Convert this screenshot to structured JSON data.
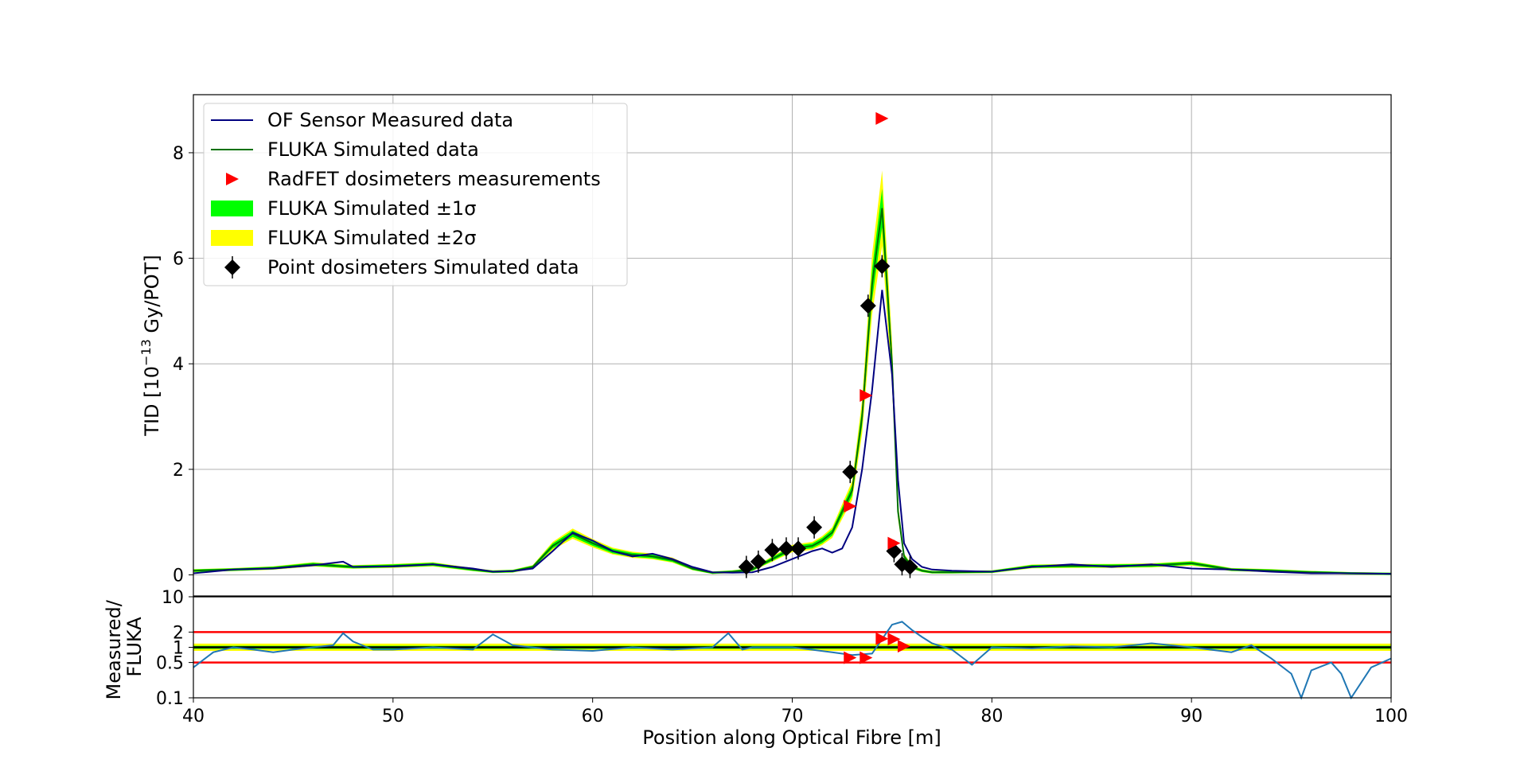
{
  "chart_data": [
    {
      "type": "line",
      "panel": "main",
      "ylabel_main": "TID [10",
      "ylabel_exp": "−13",
      "ylabel_tail": " Gy/POT]",
      "xlim": [
        40,
        100
      ],
      "ylim": [
        -0.4,
        9.1
      ],
      "xticks": [
        40,
        50,
        60,
        70,
        80,
        90,
        100
      ],
      "yticks": [
        0,
        2,
        4,
        6,
        8
      ],
      "grid": true,
      "legend_position": "top-left",
      "legend": [
        {
          "label": "OF Sensor Measured data",
          "color": "#000080",
          "kind": "line"
        },
        {
          "label": "FLUKA Simulated data",
          "color": "#007000",
          "kind": "line"
        },
        {
          "label": "RadFET dosimeters measurements",
          "color": "#ff0000",
          "kind": "triangle"
        },
        {
          "label": "FLUKA Simulated ±1σ",
          "color": "#00ff00",
          "kind": "patch"
        },
        {
          "label": "FLUKA Simulated ±2σ",
          "color": "#ffff00",
          "kind": "patch"
        },
        {
          "label": "Point dosimeters Simulated data",
          "color": "#000000",
          "kind": "diamond"
        }
      ],
      "series": [
        {
          "name": "OF Sensor Measured data",
          "x": [
            40,
            42,
            44,
            46,
            47.5,
            48,
            50,
            52,
            54,
            55,
            56,
            57,
            58,
            59,
            60,
            61,
            62,
            63,
            64,
            65,
            66,
            67,
            68,
            69,
            70,
            71,
            71.5,
            72,
            72.5,
            73,
            73.5,
            74,
            74.5,
            75,
            75.3,
            75.6,
            76,
            76.5,
            77,
            78,
            80,
            82,
            84,
            86,
            88,
            90,
            92,
            94,
            96,
            98,
            100
          ],
          "y": [
            0.03,
            0.1,
            0.12,
            0.18,
            0.25,
            0.15,
            0.16,
            0.2,
            0.12,
            0.06,
            0.07,
            0.12,
            0.45,
            0.8,
            0.65,
            0.45,
            0.35,
            0.4,
            0.3,
            0.15,
            0.05,
            0.04,
            0.05,
            0.15,
            0.3,
            0.45,
            0.5,
            0.42,
            0.5,
            0.9,
            2.0,
            3.5,
            5.4,
            3.8,
            1.8,
            0.6,
            0.3,
            0.15,
            0.1,
            0.08,
            0.06,
            0.15,
            0.2,
            0.15,
            0.2,
            0.12,
            0.1,
            0.06,
            0.03,
            0.03,
            0.02
          ]
        },
        {
          "name": "FLUKA Simulated data",
          "x": [
            40,
            42,
            44,
            46,
            48,
            50,
            52,
            54,
            55,
            56,
            57,
            58,
            59,
            60,
            61,
            62,
            63,
            64,
            65,
            66,
            67,
            68,
            69,
            70,
            71,
            71.5,
            72,
            72.5,
            73,
            73.5,
            74,
            74.5,
            75,
            75.3,
            75.6,
            76,
            76.5,
            77,
            78,
            80,
            82,
            84,
            86,
            88,
            90,
            92,
            94,
            96,
            98,
            100
          ],
          "y": [
            0.08,
            0.1,
            0.13,
            0.2,
            0.15,
            0.17,
            0.2,
            0.1,
            0.06,
            0.07,
            0.15,
            0.55,
            0.78,
            0.6,
            0.45,
            0.38,
            0.35,
            0.28,
            0.12,
            0.04,
            0.06,
            0.1,
            0.3,
            0.5,
            0.55,
            0.65,
            0.8,
            1.2,
            1.6,
            3.0,
            5.5,
            6.95,
            4.0,
            1.2,
            0.35,
            0.15,
            0.08,
            0.05,
            0.05,
            0.06,
            0.16,
            0.17,
            0.17,
            0.18,
            0.22,
            0.1,
            0.08,
            0.05,
            0.03,
            0.02
          ]
        },
        {
          "name": "RadFET dosimeters measurements",
          "x": [
            72.9,
            73.7,
            74.5,
            75.1
          ],
          "y": [
            1.3,
            3.4,
            8.65,
            0.6
          ]
        },
        {
          "name": "Point dosimeters Simulated data",
          "x": [
            67.7,
            68.3,
            69.0,
            69.7,
            70.3,
            71.1,
            72.9,
            73.8,
            74.5,
            75.1,
            75.5,
            75.9
          ],
          "y": [
            0.15,
            0.25,
            0.47,
            0.5,
            0.5,
            0.9,
            1.95,
            5.1,
            5.85,
            0.45,
            0.2,
            0.15
          ]
        }
      ]
    },
    {
      "type": "line",
      "panel": "ratio",
      "ylabel": "Measured/\nFLUKA",
      "xlabel": "Position along Optical Fibre [m]",
      "xlim": [
        40,
        100
      ],
      "ylim": [
        0.1,
        10
      ],
      "yscale": "log",
      "ytick_labels": [
        "10",
        "2",
        "1",
        "0.5",
        "0.1"
      ],
      "yticks": [
        10,
        2,
        1,
        0.5,
        0.1
      ],
      "reference_lines": [
        2,
        1,
        0.5
      ],
      "series": [
        {
          "name": "ratio",
          "x": [
            40,
            41,
            42,
            43,
            44,
            45,
            46,
            47,
            47.5,
            48,
            49,
            50,
            52,
            54,
            55,
            56,
            58,
            60,
            62,
            64,
            66,
            66.8,
            67.5,
            68,
            70,
            72,
            73,
            74,
            75,
            75.5,
            76,
            76.5,
            77,
            78,
            79,
            80,
            82,
            84,
            86,
            88,
            90,
            92,
            93,
            94,
            95,
            95.5,
            96,
            97,
            97.5,
            98,
            99,
            100
          ],
          "y": [
            0.4,
            0.8,
            1.0,
            0.9,
            0.8,
            0.9,
            1.0,
            1.1,
            1.9,
            1.3,
            0.9,
            0.9,
            1.0,
            0.9,
            1.8,
            1.1,
            0.9,
            0.85,
            1.0,
            0.9,
            1.0,
            1.9,
            0.9,
            1.0,
            1.0,
            0.8,
            0.7,
            0.75,
            2.8,
            3.2,
            2.2,
            1.6,
            1.2,
            0.9,
            0.45,
            1.0,
            0.95,
            1.05,
            1.0,
            1.2,
            1.0,
            0.8,
            1.1,
            0.6,
            0.3,
            0.1,
            0.35,
            0.5,
            0.3,
            0.1,
            0.4,
            0.6
          ]
        },
        {
          "name": "RadFET ratio",
          "x": [
            72.9,
            73.7,
            74.5,
            75.1,
            75.6
          ],
          "y": [
            0.62,
            0.62,
            1.48,
            1.45,
            1.05
          ]
        }
      ]
    }
  ]
}
